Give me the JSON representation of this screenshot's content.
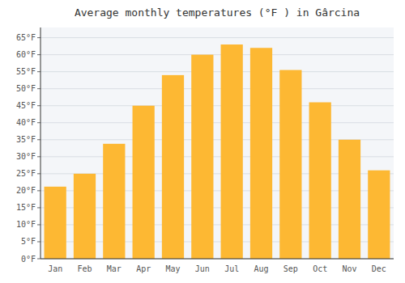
{
  "chart_data": {
    "type": "bar",
    "title": "Average monthly temperatures (°F ) in Gârcina",
    "categories": [
      "Jan",
      "Feb",
      "Mar",
      "Apr",
      "May",
      "Jun",
      "Jul",
      "Aug",
      "Sep",
      "Oct",
      "Nov",
      "Dec"
    ],
    "values": [
      21.2,
      25.0,
      33.8,
      45.0,
      54.0,
      60.0,
      63.0,
      62.0,
      55.5,
      46.0,
      35.0,
      26.0
    ],
    "color": "#FDB833",
    "ylim": [
      0,
      68
    ],
    "yticks": [
      {
        "value": 0,
        "label": "0°F"
      },
      {
        "value": 5,
        "label": "5°F"
      },
      {
        "value": 10,
        "label": "10°F"
      },
      {
        "value": 15,
        "label": "15°F"
      },
      {
        "value": 20,
        "label": "20°F"
      },
      {
        "value": 25,
        "label": "25°F"
      },
      {
        "value": 30,
        "label": "30°F"
      },
      {
        "value": 35,
        "label": "35°F"
      },
      {
        "value": 40,
        "label": "40°F"
      },
      {
        "value": 45,
        "label": "45°F"
      },
      {
        "value": 50,
        "label": "50°F"
      },
      {
        "value": 55,
        "label": "55°F"
      },
      {
        "value": 60,
        "label": "60°F"
      },
      {
        "value": 65,
        "label": "65°F"
      }
    ],
    "grid": true
  }
}
